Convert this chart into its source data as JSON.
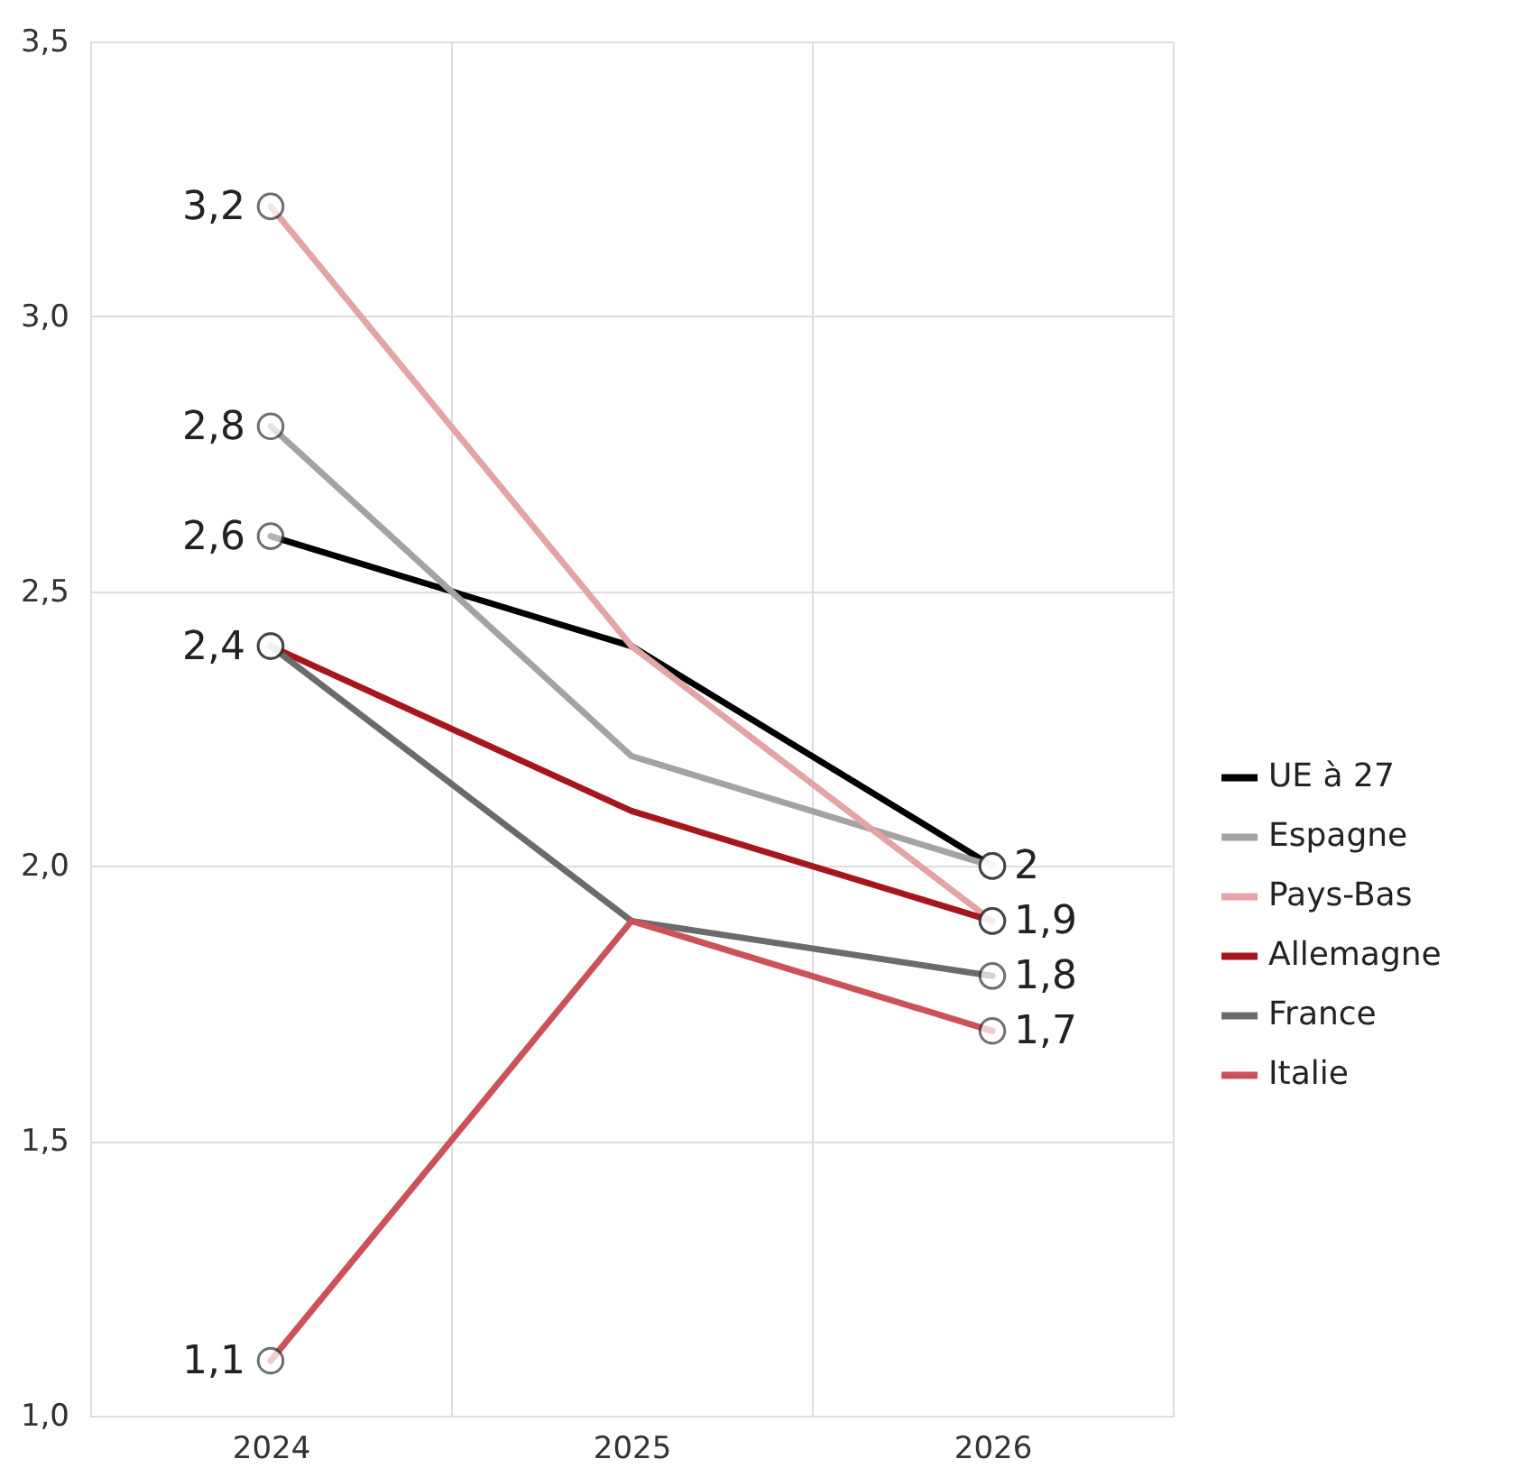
{
  "chart_data": {
    "type": "line",
    "categories": [
      "2024",
      "2025",
      "2026"
    ],
    "series": [
      {
        "name": "UE à 27",
        "color": "#000000",
        "values": [
          2.6,
          2.4,
          2.0
        ],
        "value_labels": [
          "2,6",
          null,
          "2"
        ]
      },
      {
        "name": "Espagne",
        "color": "#a3a3a3",
        "values": [
          2.8,
          2.2,
          2.0
        ],
        "value_labels": [
          "2,8",
          null,
          null
        ]
      },
      {
        "name": "Pays-Bas",
        "color": "#e4a3a7",
        "values": [
          3.2,
          2.4,
          1.9
        ],
        "value_labels": [
          "3,2",
          null,
          "1,9"
        ]
      },
      {
        "name": "Allemagne",
        "color": "#a5161d",
        "values": [
          2.4,
          2.1,
          1.9
        ],
        "value_labels": [
          "2,4",
          null,
          null
        ]
      },
      {
        "name": "France",
        "color": "#6b6b6b",
        "values": [
          2.4,
          1.9,
          1.8
        ],
        "value_labels": [
          null,
          null,
          "1,8"
        ]
      },
      {
        "name": "Italie",
        "color": "#cc525a",
        "values": [
          1.1,
          1.9,
          1.7
        ],
        "value_labels": [
          "1,1",
          null,
          "1,7"
        ]
      }
    ],
    "ylim": [
      1.0,
      3.5
    ],
    "yticks": [
      {
        "value": 1.0,
        "label": "1,0"
      },
      {
        "value": 1.5,
        "label": "1,5"
      },
      {
        "value": 2.0,
        "label": "2,0"
      },
      {
        "value": 2.5,
        "label": "2,5"
      },
      {
        "value": 3.0,
        "label": "3,0"
      },
      {
        "value": 3.5,
        "label": "3,5"
      }
    ],
    "grid": true,
    "legend": "right",
    "marker": "circle",
    "line_style": "solid"
  }
}
